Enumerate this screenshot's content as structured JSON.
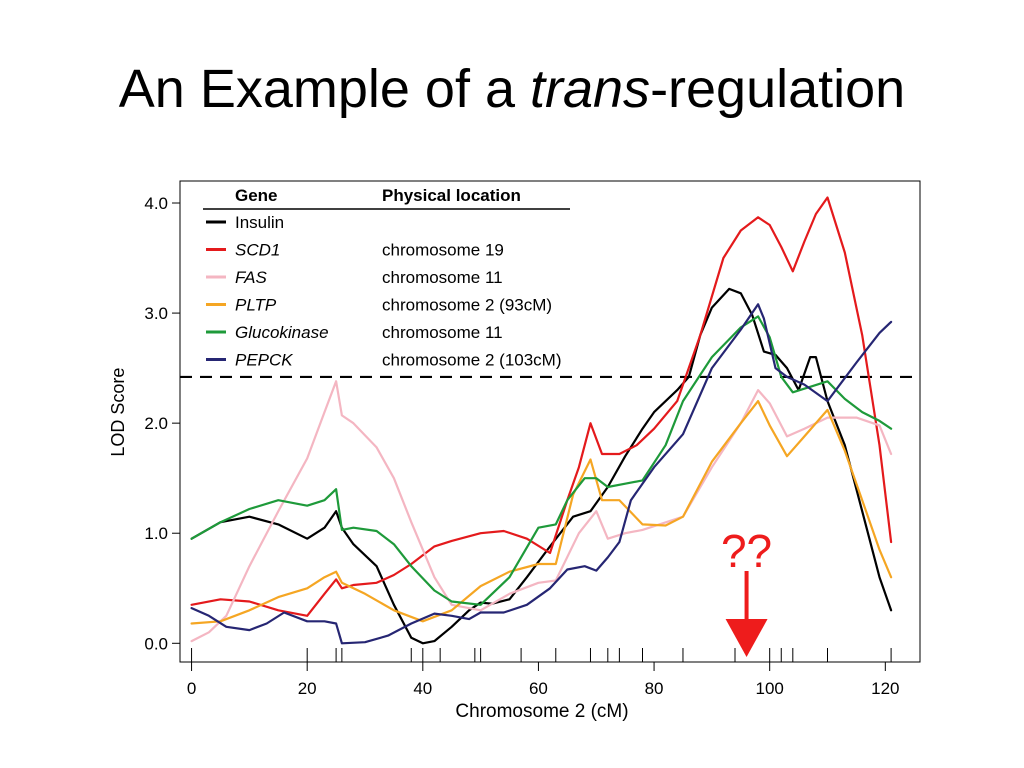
{
  "slide": {
    "title_before": "An Example of a ",
    "title_italic": "trans",
    "title_after": "-regulation"
  },
  "annotation": {
    "text": "??",
    "color": "#ee1c1c",
    "points_to_x": 96
  },
  "chart_data": {
    "type": "line",
    "xlabel": "Chromosome 2 (cM)",
    "ylabel": "LOD Score",
    "xlim": [
      -2,
      126
    ],
    "ylim": [
      -0.17,
      4.2
    ],
    "xticks": [
      0,
      20,
      40,
      60,
      80,
      100,
      120
    ],
    "xtick_labels": [
      "0",
      "20",
      "40",
      "60",
      "80",
      "100",
      "120"
    ],
    "yticks": [
      0,
      1,
      2,
      3,
      4
    ],
    "ytick_labels": [
      "0.0",
      "1.0",
      "2.0",
      "3.0",
      "4.0"
    ],
    "threshold": 2.42,
    "marker_rug": [
      0,
      20,
      25,
      26,
      38,
      40,
      43,
      49,
      50,
      57,
      63,
      69,
      72,
      74,
      78,
      85,
      94,
      100,
      102,
      104,
      110,
      121
    ],
    "legend": {
      "position": "top-left",
      "header_gene": "Gene",
      "header_location": "Physical location",
      "entries": [
        {
          "gene": "Insulin",
          "italic": false,
          "location": ""
        },
        {
          "gene": "SCD1",
          "italic": true,
          "location": "chromosome 19"
        },
        {
          "gene": "FAS",
          "italic": true,
          "location": "chromosome 11"
        },
        {
          "gene": "PLTP",
          "italic": true,
          "location": "chromosome 2 (93cM)"
        },
        {
          "gene": "Glucokinase",
          "italic": true,
          "location": "chromosome 11"
        },
        {
          "gene": "PEPCK",
          "italic": true,
          "location": "chromosome 2 (103cM)"
        }
      ]
    },
    "series": [
      {
        "name": "Insulin",
        "color": "#000000",
        "x": [
          0,
          5,
          10,
          15,
          20,
          23,
          25,
          26,
          28,
          32,
          35,
          38,
          40,
          42,
          45,
          48,
          50,
          52,
          55,
          58,
          62,
          66,
          69,
          72,
          75,
          78,
          80,
          84,
          86,
          88,
          90,
          93,
          95,
          97,
          99,
          101,
          103,
          105,
          107,
          108,
          110,
          113,
          116,
          119,
          121
        ],
        "y": [
          0.95,
          1.1,
          1.15,
          1.08,
          0.95,
          1.05,
          1.2,
          1.05,
          0.9,
          0.7,
          0.35,
          0.05,
          0.0,
          0.02,
          0.15,
          0.3,
          0.37,
          0.36,
          0.4,
          0.6,
          0.88,
          1.15,
          1.2,
          1.42,
          1.7,
          1.95,
          2.1,
          2.3,
          2.42,
          2.8,
          3.05,
          3.22,
          3.18,
          2.98,
          2.65,
          2.62,
          2.5,
          2.3,
          2.6,
          2.6,
          2.2,
          1.8,
          1.2,
          0.6,
          0.3
        ]
      },
      {
        "name": "SCD1",
        "color": "#e41a1c",
        "x": [
          0,
          5,
          10,
          15,
          20,
          23,
          25,
          26,
          28,
          32,
          35,
          38,
          42,
          45,
          50,
          54,
          58,
          62,
          65,
          67,
          69,
          71,
          74,
          77,
          80,
          84,
          88,
          92,
          95,
          98,
          100,
          102,
          104,
          106,
          108,
          110,
          113,
          116,
          119,
          121
        ],
        "y": [
          0.35,
          0.4,
          0.38,
          0.3,
          0.25,
          0.45,
          0.58,
          0.5,
          0.53,
          0.55,
          0.62,
          0.72,
          0.88,
          0.93,
          1.0,
          1.02,
          0.95,
          0.82,
          1.3,
          1.6,
          2.0,
          1.72,
          1.72,
          1.8,
          1.95,
          2.2,
          2.8,
          3.5,
          3.75,
          3.87,
          3.8,
          3.6,
          3.38,
          3.65,
          3.9,
          4.05,
          3.55,
          2.8,
          1.8,
          0.92
        ]
      },
      {
        "name": "FAS",
        "color": "#f4b6c2",
        "x": [
          0,
          3,
          6,
          10,
          15,
          20,
          23,
          25,
          26,
          28,
          32,
          35,
          38,
          42,
          45,
          50,
          55,
          60,
          63,
          67,
          70,
          72,
          75,
          78,
          85,
          90,
          95,
          98,
          100,
          103,
          106,
          110,
          115,
          119,
          121
        ],
        "y": [
          0.02,
          0.1,
          0.25,
          0.7,
          1.2,
          1.68,
          2.1,
          2.38,
          2.07,
          2.0,
          1.78,
          1.5,
          1.1,
          0.6,
          0.35,
          0.3,
          0.45,
          0.55,
          0.57,
          1.0,
          1.2,
          0.95,
          1.0,
          1.03,
          1.15,
          1.6,
          2.0,
          2.3,
          2.18,
          1.88,
          1.95,
          2.05,
          2.05,
          1.98,
          1.72
        ]
      },
      {
        "name": "PLTP",
        "color": "#f5a623",
        "x": [
          0,
          5,
          10,
          15,
          20,
          23,
          25,
          26,
          30,
          35,
          40,
          45,
          50,
          55,
          60,
          63,
          66,
          69,
          71,
          74,
          78,
          82,
          85,
          90,
          95,
          98,
          100,
          103,
          106,
          110,
          113,
          116,
          119,
          121
        ],
        "y": [
          0.18,
          0.2,
          0.3,
          0.42,
          0.5,
          0.6,
          0.65,
          0.55,
          0.45,
          0.3,
          0.2,
          0.3,
          0.52,
          0.65,
          0.72,
          0.72,
          1.35,
          1.67,
          1.3,
          1.3,
          1.08,
          1.07,
          1.15,
          1.65,
          2.0,
          2.2,
          1.98,
          1.7,
          1.88,
          2.12,
          1.75,
          1.3,
          0.85,
          0.6
        ]
      },
      {
        "name": "Glucokinase",
        "color": "#1e9a3a",
        "x": [
          0,
          5,
          10,
          15,
          20,
          23,
          25,
          26,
          28,
          32,
          35,
          38,
          42,
          45,
          50,
          55,
          60,
          63,
          65,
          68,
          70,
          72,
          75,
          78,
          82,
          85,
          90,
          95,
          98,
          100,
          102,
          104,
          107,
          110,
          113,
          116,
          119,
          121
        ],
        "y": [
          0.95,
          1.1,
          1.22,
          1.3,
          1.25,
          1.3,
          1.4,
          1.03,
          1.05,
          1.02,
          0.9,
          0.7,
          0.48,
          0.38,
          0.35,
          0.6,
          1.05,
          1.08,
          1.3,
          1.5,
          1.5,
          1.42,
          1.45,
          1.48,
          1.8,
          2.2,
          2.6,
          2.87,
          2.97,
          2.78,
          2.42,
          2.28,
          2.33,
          2.38,
          2.22,
          2.1,
          2.02,
          1.95
        ]
      },
      {
        "name": "PEPCK",
        "color": "#262673",
        "x": [
          0,
          3,
          6,
          10,
          13,
          16,
          20,
          23,
          25,
          26,
          30,
          34,
          38,
          42,
          45,
          48,
          50,
          54,
          58,
          62,
          65,
          68,
          70,
          72,
          74,
          76,
          80,
          85,
          90,
          95,
          98,
          99,
          101,
          103,
          106,
          110,
          115,
          119,
          121
        ],
        "y": [
          0.32,
          0.25,
          0.15,
          0.12,
          0.18,
          0.28,
          0.2,
          0.2,
          0.18,
          0.0,
          0.01,
          0.07,
          0.18,
          0.27,
          0.25,
          0.22,
          0.28,
          0.28,
          0.35,
          0.5,
          0.67,
          0.7,
          0.66,
          0.78,
          0.92,
          1.3,
          1.6,
          1.9,
          2.5,
          2.85,
          3.08,
          2.95,
          2.5,
          2.42,
          2.35,
          2.2,
          2.55,
          2.82,
          2.92
        ]
      }
    ]
  }
}
